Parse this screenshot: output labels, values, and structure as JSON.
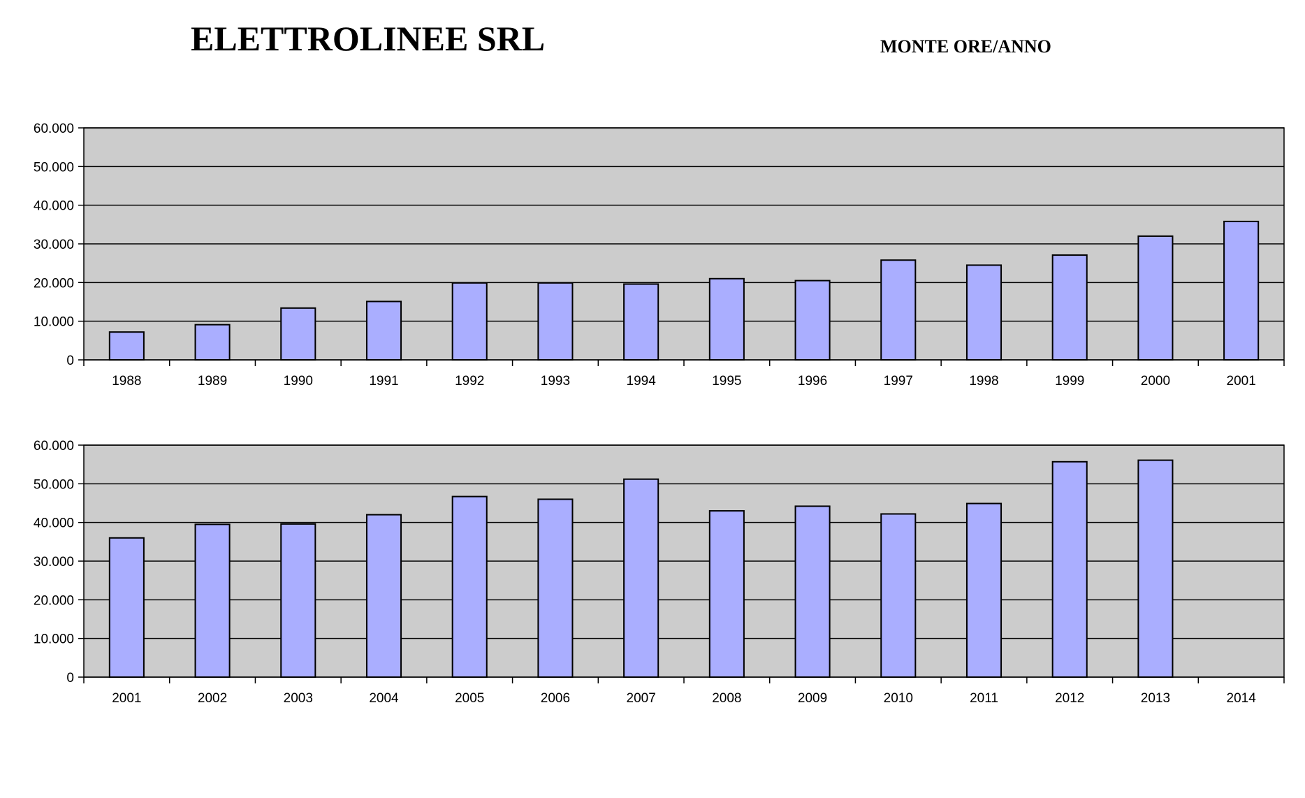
{
  "header": {
    "title": "ELETTROLINEE SRL",
    "subtitle": "MONTE ORE/ANNO"
  },
  "colors": {
    "bar_fill": "#aaaeff",
    "bar_stroke": "#000000",
    "plot_bg": "#cccccc",
    "gridline": "#000000"
  },
  "chart_data": [
    {
      "type": "bar",
      "categories": [
        "1988",
        "1989",
        "1990",
        "1991",
        "1992",
        "1993",
        "1994",
        "1995",
        "1996",
        "1997",
        "1998",
        "1999",
        "2000",
        "2001"
      ],
      "values": [
        7200,
        9100,
        13400,
        15100,
        19900,
        19900,
        19600,
        21000,
        20500,
        25800,
        24500,
        27100,
        32000,
        35800
      ],
      "ylim": [
        0,
        60000
      ],
      "yticks": [
        "0",
        "10.000",
        "20.000",
        "30.000",
        "40.000",
        "50.000",
        "60.000"
      ],
      "ytick_values": [
        0,
        10000,
        20000,
        30000,
        40000,
        50000,
        60000
      ],
      "grid": true,
      "legend": "none"
    },
    {
      "type": "bar",
      "categories": [
        "2001",
        "2002",
        "2003",
        "2004",
        "2005",
        "2006",
        "2007",
        "2008",
        "2009",
        "2010",
        "2011",
        "2012",
        "2013",
        "2014"
      ],
      "values": [
        36000,
        39500,
        39600,
        42000,
        46700,
        46000,
        51200,
        43000,
        44200,
        42200,
        44900,
        55700,
        56100,
        null
      ],
      "ylim": [
        0,
        60000
      ],
      "yticks": [
        "0",
        "10.000",
        "20.000",
        "30.000",
        "40.000",
        "50.000",
        "60.000"
      ],
      "ytick_values": [
        0,
        10000,
        20000,
        30000,
        40000,
        50000,
        60000
      ],
      "grid": true,
      "legend": "none"
    }
  ]
}
